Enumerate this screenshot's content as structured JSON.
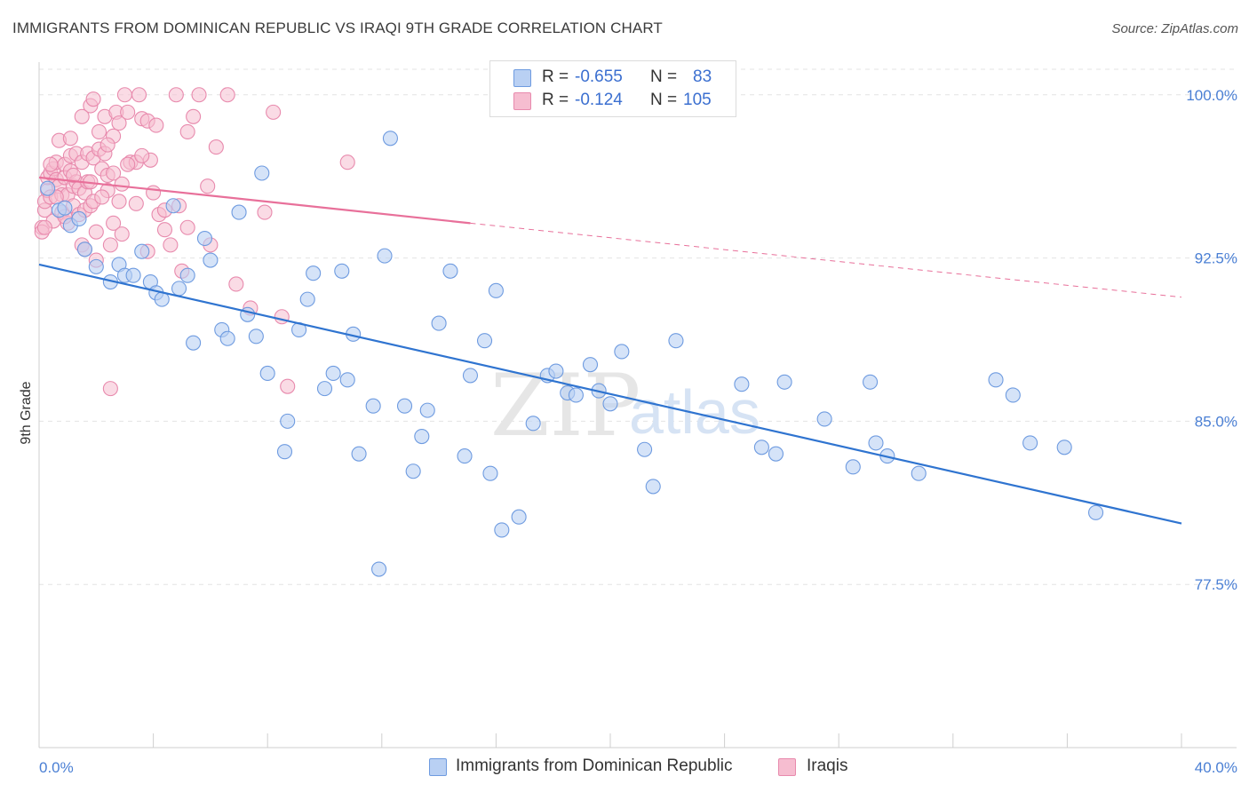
{
  "header": {
    "title": "IMMIGRANTS FROM DOMINICAN REPUBLIC VS IRAQI 9TH GRADE CORRELATION CHART",
    "source": "Source: ZipAtlas.com"
  },
  "legend_top": {
    "rows": [
      {
        "r_label": "R =",
        "r_value": "-0.655",
        "n_label": "N =",
        "n_value": "83"
      },
      {
        "r_label": "R =",
        "r_value": "-0.124",
        "n_label": "N =",
        "n_value": "105"
      }
    ]
  },
  "legend_bottom": {
    "items": [
      "Immigrants from Dominican Republic",
      "Iraqis"
    ]
  },
  "watermark": {
    "zip": "ZIP",
    "atlas": "atlas"
  },
  "colors": {
    "blue_fill": "#b9d0f3",
    "blue_stroke": "#6e9be0",
    "blue_line": "#2f74d0",
    "pink_fill": "#f6bdd0",
    "pink_stroke": "#e88aad",
    "pink_line": "#e8709a",
    "tick_text": "#4a7fd4",
    "grid": "#e3e3e3"
  },
  "chart_data": {
    "type": "scatter",
    "title": "IMMIGRANTS FROM DOMINICAN REPUBLIC VS IRAQI 9TH GRADE CORRELATION CHART",
    "xlabel": "",
    "ylabel": "9th Grade",
    "xlim": [
      0,
      40
    ],
    "ylim": [
      70.0,
      101.5
    ],
    "x_tick_labels": [
      "0.0%",
      "40.0%"
    ],
    "y_ticks": [
      77.5,
      85.0,
      92.5,
      100.0
    ],
    "y_tick_labels": [
      "77.5%",
      "85.0%",
      "92.5%",
      "100.0%"
    ],
    "grid": true,
    "legend_position": "top-center and bottom",
    "series": [
      {
        "name": "Immigrants from Dominican Republic",
        "r": -0.655,
        "n": 83,
        "trend": {
          "x0": 0,
          "y0": 92.2,
          "x1": 40,
          "y1": 80.3
        },
        "points": [
          [
            0.3,
            95.7
          ],
          [
            0.7,
            94.7
          ],
          [
            0.9,
            94.8
          ],
          [
            1.1,
            94.0
          ],
          [
            1.4,
            94.3
          ],
          [
            1.6,
            92.9
          ],
          [
            2.0,
            92.1
          ],
          [
            2.5,
            91.4
          ],
          [
            2.8,
            92.2
          ],
          [
            3.0,
            91.7
          ],
          [
            3.3,
            91.7
          ],
          [
            3.6,
            92.8
          ],
          [
            3.9,
            91.4
          ],
          [
            4.1,
            90.9
          ],
          [
            4.3,
            90.6
          ],
          [
            4.7,
            94.9
          ],
          [
            4.9,
            91.1
          ],
          [
            5.2,
            91.7
          ],
          [
            5.4,
            88.6
          ],
          [
            5.8,
            93.4
          ],
          [
            6.0,
            92.4
          ],
          [
            6.4,
            89.2
          ],
          [
            6.6,
            88.8
          ],
          [
            7.0,
            94.6
          ],
          [
            7.3,
            89.9
          ],
          [
            7.6,
            88.9
          ],
          [
            7.8,
            96.4
          ],
          [
            8.0,
            87.2
          ],
          [
            8.6,
            83.6
          ],
          [
            8.7,
            85.0
          ],
          [
            9.1,
            89.2
          ],
          [
            9.4,
            90.6
          ],
          [
            9.6,
            91.8
          ],
          [
            10.0,
            86.5
          ],
          [
            10.3,
            87.2
          ],
          [
            10.6,
            91.9
          ],
          [
            10.8,
            86.9
          ],
          [
            11.0,
            89.0
          ],
          [
            11.2,
            83.5
          ],
          [
            11.7,
            85.7
          ],
          [
            11.9,
            78.2
          ],
          [
            12.1,
            92.6
          ],
          [
            12.3,
            98.0
          ],
          [
            12.8,
            85.7
          ],
          [
            13.1,
            82.7
          ],
          [
            13.4,
            84.3
          ],
          [
            13.6,
            85.5
          ],
          [
            14.0,
            89.5
          ],
          [
            14.4,
            91.9
          ],
          [
            14.9,
            83.4
          ],
          [
            15.1,
            87.1
          ],
          [
            15.6,
            88.7
          ],
          [
            15.8,
            82.6
          ],
          [
            16.0,
            91.0
          ],
          [
            16.2,
            80.0
          ],
          [
            16.8,
            80.6
          ],
          [
            17.3,
            84.9
          ],
          [
            17.8,
            87.1
          ],
          [
            18.1,
            87.3
          ],
          [
            18.5,
            86.3
          ],
          [
            18.8,
            86.2
          ],
          [
            19.3,
            87.6
          ],
          [
            19.6,
            86.4
          ],
          [
            20.0,
            85.8
          ],
          [
            20.4,
            88.2
          ],
          [
            21.2,
            83.7
          ],
          [
            21.5,
            82.0
          ],
          [
            22.3,
            88.7
          ],
          [
            24.6,
            86.7
          ],
          [
            25.3,
            83.8
          ],
          [
            25.8,
            83.5
          ],
          [
            26.1,
            86.8
          ],
          [
            27.5,
            85.1
          ],
          [
            28.5,
            82.9
          ],
          [
            29.1,
            86.8
          ],
          [
            29.3,
            84.0
          ],
          [
            29.7,
            83.4
          ],
          [
            30.8,
            82.6
          ],
          [
            33.5,
            86.9
          ],
          [
            34.1,
            86.2
          ],
          [
            34.7,
            84.0
          ],
          [
            35.9,
            83.8
          ],
          [
            37.0,
            80.8
          ]
        ]
      },
      {
        "name": "Iraqis",
        "r": -0.124,
        "n": 105,
        "trend_solid": {
          "x0": 0,
          "y0": 96.2,
          "x1": 15.1,
          "y1": 94.1
        },
        "trend_dashed": {
          "x0": 15.1,
          "y0": 94.1,
          "x1": 40,
          "y1": 90.7
        },
        "points": [
          [
            0.1,
            93.9
          ],
          [
            0.1,
            93.7
          ],
          [
            0.2,
            94.7
          ],
          [
            0.2,
            95.1
          ],
          [
            0.3,
            95.6
          ],
          [
            0.3,
            96.2
          ],
          [
            0.4,
            96.4
          ],
          [
            0.4,
            95.3
          ],
          [
            0.5,
            94.2
          ],
          [
            0.5,
            96.6
          ],
          [
            0.6,
            96.9
          ],
          [
            0.6,
            96.1
          ],
          [
            0.7,
            95.8
          ],
          [
            0.7,
            97.9
          ],
          [
            0.8,
            95.4
          ],
          [
            0.8,
            94.6
          ],
          [
            0.9,
            96.8
          ],
          [
            0.9,
            96.2
          ],
          [
            1.0,
            95.4
          ],
          [
            1.0,
            94.1
          ],
          [
            1.1,
            97.2
          ],
          [
            1.1,
            96.5
          ],
          [
            1.2,
            95.8
          ],
          [
            1.2,
            94.9
          ],
          [
            1.3,
            97.3
          ],
          [
            1.3,
            96.0
          ],
          [
            1.4,
            94.5
          ],
          [
            1.4,
            95.7
          ],
          [
            1.5,
            96.9
          ],
          [
            1.5,
            93.1
          ],
          [
            1.6,
            94.7
          ],
          [
            1.6,
            95.5
          ],
          [
            1.7,
            96.0
          ],
          [
            1.7,
            97.3
          ],
          [
            1.8,
            99.5
          ],
          [
            1.8,
            94.9
          ],
          [
            1.9,
            95.1
          ],
          [
            1.9,
            97.1
          ],
          [
            2.0,
            92.4
          ],
          [
            2.0,
            93.7
          ],
          [
            2.1,
            98.3
          ],
          [
            2.1,
            97.5
          ],
          [
            2.2,
            96.6
          ],
          [
            2.3,
            97.3
          ],
          [
            2.3,
            99.0
          ],
          [
            2.4,
            96.3
          ],
          [
            2.4,
            95.6
          ],
          [
            2.5,
            93.1
          ],
          [
            2.6,
            96.4
          ],
          [
            2.6,
            94.1
          ],
          [
            2.7,
            99.2
          ],
          [
            2.8,
            98.7
          ],
          [
            2.9,
            95.9
          ],
          [
            3.0,
            100.0
          ],
          [
            3.1,
            99.2
          ],
          [
            3.2,
            96.9
          ],
          [
            3.4,
            96.9
          ],
          [
            3.5,
            100.0
          ],
          [
            3.6,
            98.9
          ],
          [
            3.8,
            98.8
          ],
          [
            3.9,
            97.0
          ],
          [
            4.0,
            95.5
          ],
          [
            4.2,
            94.5
          ],
          [
            4.4,
            93.8
          ],
          [
            4.6,
            93.1
          ],
          [
            4.8,
            100.0
          ],
          [
            5.0,
            91.9
          ],
          [
            5.2,
            93.9
          ],
          [
            5.4,
            99.0
          ],
          [
            5.6,
            100.0
          ],
          [
            5.9,
            95.8
          ],
          [
            6.2,
            97.6
          ],
          [
            6.6,
            100.0
          ],
          [
            6.9,
            91.3
          ],
          [
            7.4,
            90.2
          ],
          [
            7.9,
            94.6
          ],
          [
            8.2,
            99.2
          ],
          [
            8.5,
            89.8
          ],
          [
            8.7,
            86.6
          ],
          [
            10.8,
            96.9
          ],
          [
            2.5,
            86.5
          ],
          [
            1.9,
            99.8
          ],
          [
            2.6,
            98.1
          ],
          [
            3.8,
            92.8
          ],
          [
            1.1,
            98.0
          ],
          [
            0.6,
            95.3
          ],
          [
            1.6,
            92.9
          ],
          [
            4.1,
            98.6
          ],
          [
            2.2,
            95.3
          ],
          [
            3.1,
            96.8
          ],
          [
            0.9,
            94.4
          ],
          [
            1.8,
            96.0
          ],
          [
            2.9,
            93.6
          ],
          [
            3.4,
            95.0
          ],
          [
            4.9,
            94.9
          ],
          [
            0.4,
            96.8
          ],
          [
            1.2,
            96.3
          ],
          [
            2.4,
            97.7
          ],
          [
            5.2,
            98.3
          ],
          [
            0.2,
            93.9
          ],
          [
            3.6,
            97.2
          ],
          [
            1.5,
            99.0
          ],
          [
            2.8,
            95.1
          ],
          [
            4.4,
            94.7
          ],
          [
            6.0,
            93.1
          ]
        ]
      }
    ]
  }
}
